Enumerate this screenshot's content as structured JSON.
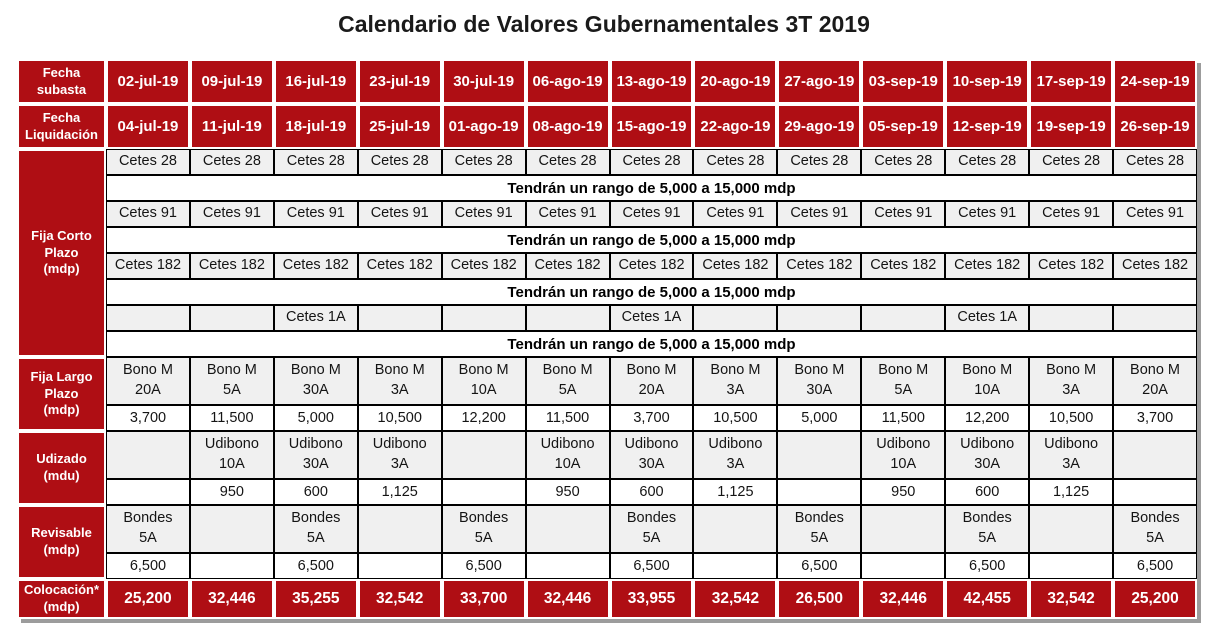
{
  "title": "Calendario de Valores Gubernamentales 3T 2019",
  "range_note": "Tendrán un rango de 5,000 a 15,000 mdp",
  "columns_count": 13,
  "colors": {
    "header_red": "#AF0E14",
    "cell_gray": "#F0F0F0",
    "border_black": "#000000",
    "shadow_gray": "#9C9C9C",
    "text_white": "#FFFFFF"
  },
  "table": {
    "rows": [
      {
        "name": "auction-date-row",
        "label": "Fecha\nsubasta",
        "label_name": "auction-date-label",
        "height_class": "h-hdr",
        "cell_class": "red",
        "cell_name": "auction-date-cell",
        "cells": [
          "02-jul-19",
          "09-jul-19",
          "16-jul-19",
          "23-jul-19",
          "30-jul-19",
          "06-ago-19",
          "13-ago-19",
          "20-ago-19",
          "27-ago-19",
          "03-sep-19",
          "10-sep-19",
          "17-sep-19",
          "24-sep-19"
        ]
      },
      {
        "name": "settlement-date-row",
        "label": "Fecha\nLiquidación",
        "label_name": "settlement-date-label",
        "height_class": "h-hdr",
        "cell_class": "red",
        "cell_name": "settlement-date-cell",
        "cells": [
          "04-jul-19",
          "11-jul-19",
          "18-jul-19",
          "25-jul-19",
          "01-ago-19",
          "08-ago-19",
          "15-ago-19",
          "22-ago-19",
          "29-ago-19",
          "05-sep-19",
          "12-sep-19",
          "19-sep-19",
          "26-sep-19"
        ]
      },
      {
        "name": "cetes-28-row",
        "label": "Fija Corto\nPlazo\n(mdp)",
        "label_name": "section-label-fija-corto-plazo",
        "label_rowspan": 8,
        "height_class": "h-1",
        "cell_class": "gray",
        "cell_name": "instrument-cell",
        "cells": [
          "Cetes 28",
          "Cetes 28",
          "Cetes 28",
          "Cetes 28",
          "Cetes 28",
          "Cetes 28",
          "Cetes 28",
          "Cetes 28",
          "Cetes 28",
          "Cetes 28",
          "Cetes 28",
          "Cetes 28",
          "Cetes 28"
        ]
      },
      {
        "name": "range-note-row",
        "note": true,
        "height_class": "h-1"
      },
      {
        "name": "cetes-91-row",
        "height_class": "h-1",
        "cell_class": "gray",
        "cell_name": "instrument-cell",
        "cells": [
          "Cetes 91",
          "Cetes 91",
          "Cetes 91",
          "Cetes 91",
          "Cetes 91",
          "Cetes 91",
          "Cetes 91",
          "Cetes 91",
          "Cetes 91",
          "Cetes 91",
          "Cetes 91",
          "Cetes 91",
          "Cetes 91"
        ]
      },
      {
        "name": "range-note-row",
        "note": true,
        "height_class": "h-1"
      },
      {
        "name": "cetes-182-row",
        "height_class": "h-1",
        "cell_class": "gray",
        "cell_name": "instrument-cell",
        "cells": [
          "Cetes 182",
          "Cetes 182",
          "Cetes 182",
          "Cetes 182",
          "Cetes 182",
          "Cetes 182",
          "Cetes 182",
          "Cetes 182",
          "Cetes 182",
          "Cetes 182",
          "Cetes 182",
          "Cetes 182",
          "Cetes 182"
        ]
      },
      {
        "name": "range-note-row",
        "note": true,
        "height_class": "h-1"
      },
      {
        "name": "cetes-1a-row",
        "height_class": "h-1",
        "cell_class": "gray",
        "cell_name": "instrument-cell",
        "cells": [
          "",
          "",
          "Cetes 1A",
          "",
          "",
          "",
          "Cetes 1A",
          "",
          "",
          "",
          "Cetes 1A",
          "",
          ""
        ]
      },
      {
        "name": "range-note-row",
        "note": true,
        "height_class": "h-1"
      },
      {
        "name": "bono-m-row",
        "label": "Fija Largo\nPlazo\n(mdp)",
        "label_name": "section-label-fija-largo-plazo",
        "label_rowspan": 2,
        "height_class": "h-2",
        "cell_class": "gray",
        "cell_name": "instrument-cell",
        "cells": [
          "Bono M\n20A",
          "Bono M\n5A",
          "Bono M\n30A",
          "Bono M\n3A",
          "Bono M\n10A",
          "Bono M\n5A",
          "Bono M\n20A",
          "Bono M\n3A",
          "Bono M\n30A",
          "Bono M\n5A",
          "Bono M\n10A",
          "Bono M\n3A",
          "Bono M\n20A"
        ]
      },
      {
        "name": "bono-m-amount-row",
        "height_class": "h-1",
        "cell_class": "plain",
        "cell_name": "amount-cell",
        "cells": [
          "3,700",
          "11,500",
          "5,000",
          "10,500",
          "12,200",
          "11,500",
          "3,700",
          "10,500",
          "5,000",
          "11,500",
          "12,200",
          "10,500",
          "3,700"
        ]
      },
      {
        "name": "udibono-row",
        "label": "Udizado\n(mdu)",
        "label_name": "section-label-udizado",
        "label_rowspan": 2,
        "height_class": "h-2",
        "cell_class": "gray",
        "cell_name": "instrument-cell",
        "cells": [
          "",
          "Udibono\n10A",
          "Udibono\n30A",
          "Udibono\n3A",
          "",
          "Udibono\n10A",
          "Udibono\n30A",
          "Udibono\n3A",
          "",
          "Udibono\n10A",
          "Udibono\n30A",
          "Udibono\n3A",
          ""
        ]
      },
      {
        "name": "udibono-amount-row",
        "height_class": "h-1",
        "cell_class": "plain",
        "cell_name": "amount-cell",
        "cells": [
          "",
          "950",
          "600",
          "1,125",
          "",
          "950",
          "600",
          "1,125",
          "",
          "950",
          "600",
          "1,125",
          ""
        ]
      },
      {
        "name": "bondes-row",
        "label": "Revisable\n(mdp)",
        "label_name": "section-label-revisable",
        "label_rowspan": 2,
        "height_class": "h-2",
        "cell_class": "gray",
        "cell_name": "instrument-cell",
        "cells": [
          "Bondes\n5A",
          "",
          "Bondes\n5A",
          "",
          "Bondes\n5A",
          "",
          "Bondes\n5A",
          "",
          "Bondes\n5A",
          "",
          "Bondes\n5A",
          "",
          "Bondes\n5A"
        ]
      },
      {
        "name": "bondes-amount-row",
        "height_class": "h-1",
        "cell_class": "plain",
        "cell_name": "amount-cell",
        "cells": [
          "6,500",
          "",
          "6,500",
          "",
          "6,500",
          "",
          "6,500",
          "",
          "6,500",
          "",
          "6,500",
          "",
          "6,500"
        ]
      },
      {
        "name": "placement-row",
        "label": "Colocación*\n(mdp)",
        "label_name": "placement-label",
        "height_class": "h-foot",
        "cell_class": "redfoot",
        "cell_name": "placement-cell",
        "cells": [
          "25,200",
          "32,446",
          "35,255",
          "32,542",
          "33,700",
          "32,446",
          "33,955",
          "32,542",
          "26,500",
          "32,446",
          "42,455",
          "32,542",
          "25,200"
        ]
      }
    ]
  }
}
